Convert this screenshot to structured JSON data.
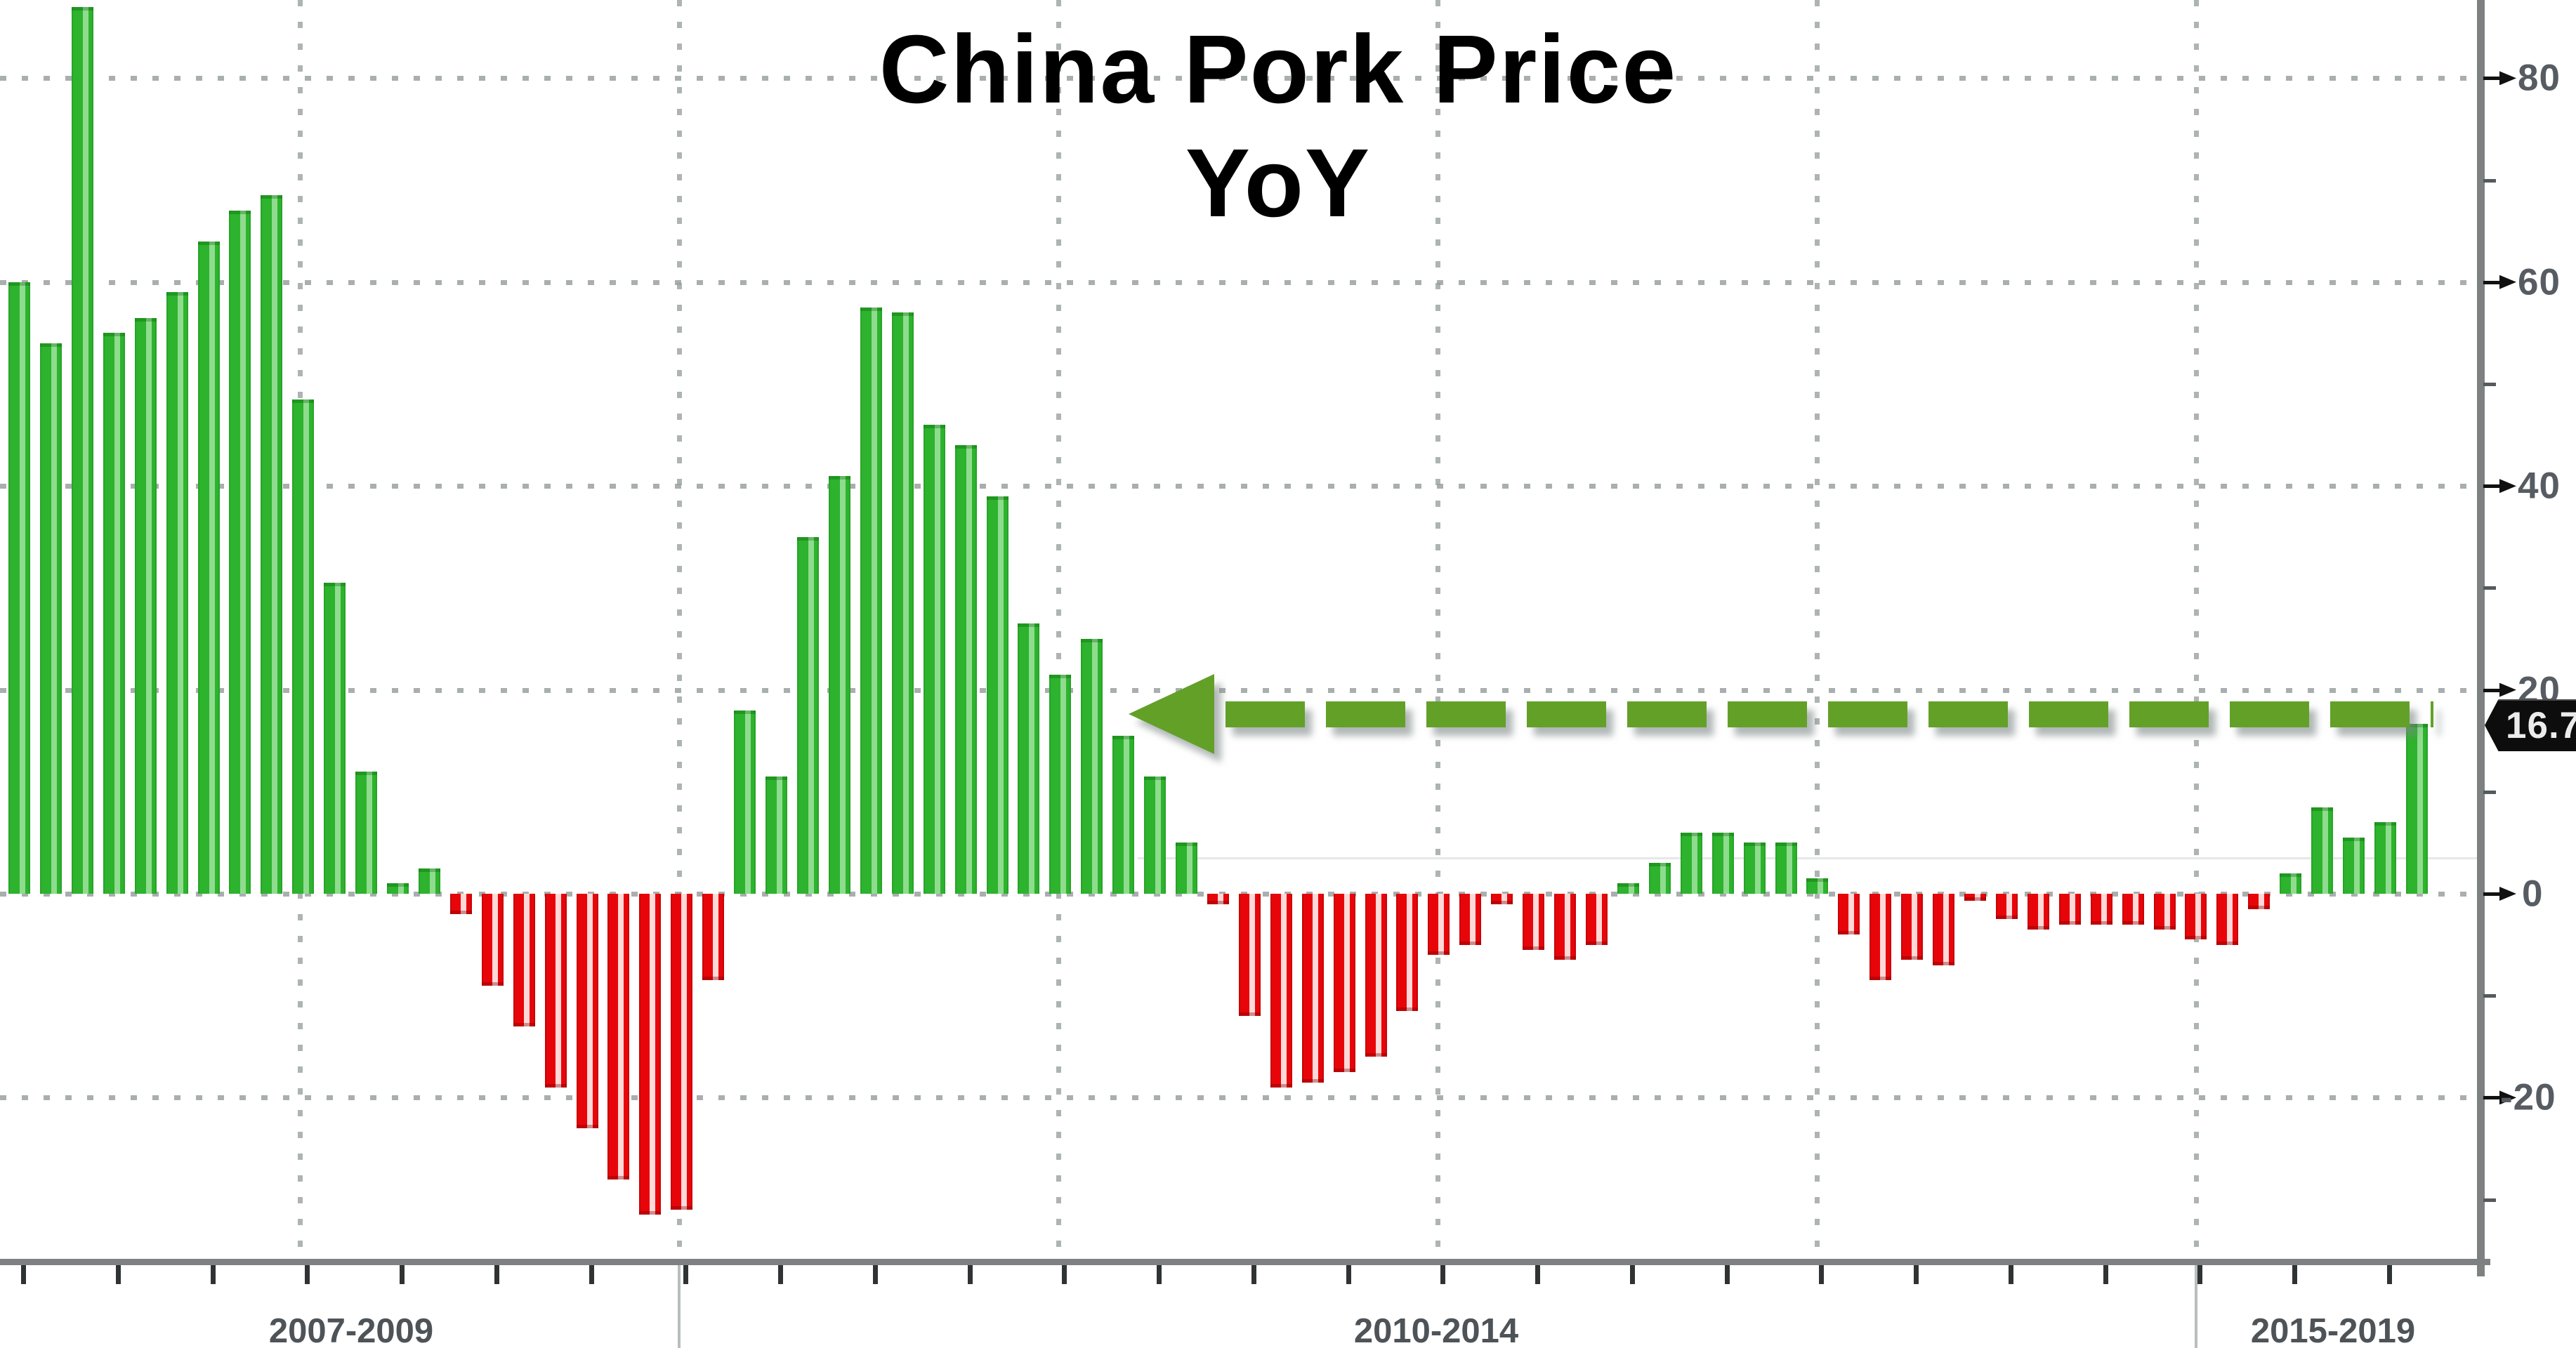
{
  "title": {
    "line1": "China Pork Price",
    "line2": "YoY"
  },
  "right_axis": {
    "major_ticks": [
      80,
      60,
      40,
      20,
      0,
      -20
    ],
    "minor_ticks": [
      70,
      50,
      30,
      10,
      -10,
      -30
    ],
    "marker_label": "16.7"
  },
  "x_axis": {
    "section_labels": [
      "2007-2009",
      "2010-2014",
      "2015-2019"
    ]
  },
  "colors": {
    "green": "#2db32d",
    "red": "#e8050a",
    "olive": "#63a028",
    "axis_gray": "#7d8181",
    "grid_dot": "#9aa0a0",
    "label_gray": "#565c62",
    "marker_bg": "#0d0d0d",
    "marker_text": "#ececec"
  },
  "chart_data": {
    "type": "bar",
    "title": "China Pork Price YoY",
    "unit": "percent (YoY %)",
    "x_sections": [
      "2007-2009",
      "2010-2014",
      "2015-2019"
    ],
    "ylabel": "",
    "ylim": [
      -36,
      88
    ],
    "grid": true,
    "gridlines_y": [
      80,
      60,
      40,
      20,
      0,
      -20
    ],
    "legend_position": "none",
    "latest_value": 16.7,
    "annotation": {
      "type": "left-arrow-dashed-line",
      "level": 16.7
    },
    "values": [
      60,
      54,
      87,
      55,
      56.5,
      59,
      64,
      67,
      68.5,
      48.5,
      30.5,
      12,
      1,
      2.5,
      -2,
      -9,
      -13,
      -19,
      -23,
      -28,
      -31.5,
      -31,
      -8.5,
      18,
      11.5,
      35,
      41,
      57.5,
      57,
      46,
      44,
      39,
      26.5,
      21.5,
      25,
      15.5,
      11.5,
      5,
      -1,
      -12,
      -19,
      -18.5,
      -17.5,
      -16,
      -11.5,
      -6,
      -5,
      -1,
      -5.5,
      -6.5,
      -5,
      1,
      3,
      6,
      6,
      5,
      5,
      1.5,
      -4,
      -8.5,
      -6.5,
      -7,
      -0.7,
      -2.5,
      -3.5,
      -3,
      -3,
      -3,
      -3.5,
      -4.5,
      -5,
      -1.5,
      2,
      8.5,
      5.5,
      7,
      16.7
    ]
  }
}
